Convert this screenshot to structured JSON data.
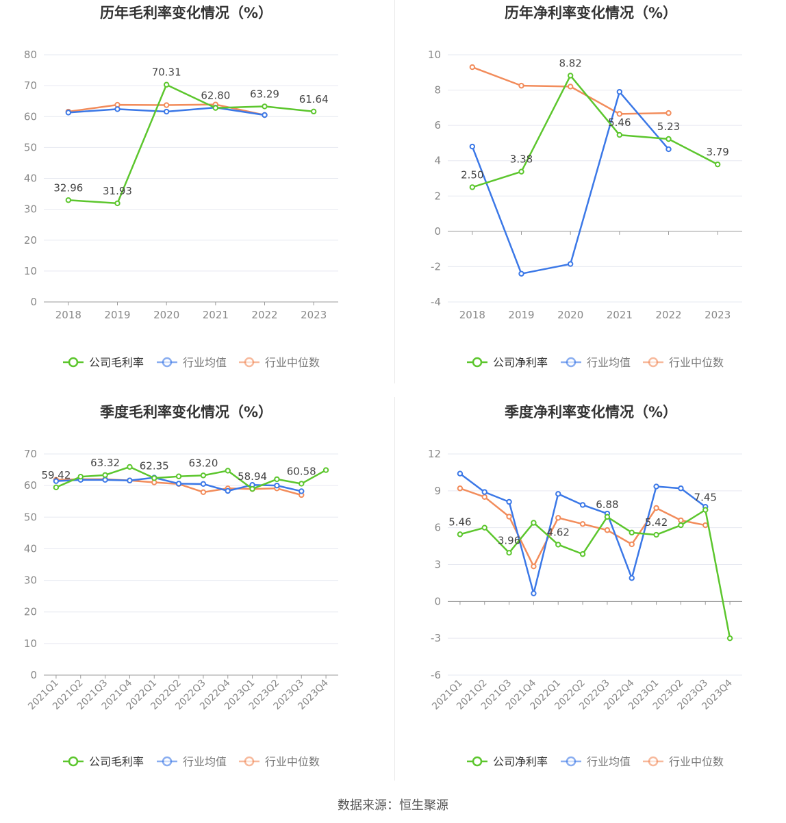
{
  "source_text": "数据来源：恒生聚源",
  "colors": {
    "company": "#5cc62d",
    "avg": "#3b78e7",
    "median": "#f28c5b",
    "grid": "#e6e8f0",
    "axis": "#888888",
    "title": "#333333"
  },
  "chart_data": [
    {
      "type": "line",
      "title": "历年毛利率变化情况（%）",
      "categories": [
        "2018",
        "2019",
        "2020",
        "2021",
        "2022",
        "2023"
      ],
      "ylim": [
        0,
        80
      ],
      "yticks": [
        "0",
        "10",
        "20",
        "30",
        "40",
        "50",
        "60",
        "70",
        "80"
      ],
      "grid": true,
      "legend_position": "bottom",
      "series": [
        {
          "name": "公司毛利率",
          "values": [
            32.96,
            31.93,
            70.31,
            62.8,
            63.29,
            61.64
          ],
          "labels": [
            "32.96",
            "31.93",
            "70.31",
            "62.80",
            "63.29",
            "61.64"
          ]
        },
        {
          "name": "行业均值",
          "values": [
            61.3,
            62.4,
            61.6,
            62.9,
            60.5,
            null
          ]
        },
        {
          "name": "行业中位数",
          "values": [
            61.6,
            63.8,
            63.7,
            63.9,
            60.5,
            null
          ]
        }
      ]
    },
    {
      "type": "line",
      "title": "历年净利率变化情况（%）",
      "categories": [
        "2018",
        "2019",
        "2020",
        "2021",
        "2022",
        "2023"
      ],
      "ylim": [
        -4,
        10
      ],
      "yticks": [
        "-4",
        "-2",
        "0",
        "2",
        "4",
        "6",
        "8",
        "10"
      ],
      "grid": true,
      "legend_position": "bottom",
      "series": [
        {
          "name": "公司净利率",
          "values": [
            2.5,
            3.38,
            8.82,
            5.46,
            5.23,
            3.79
          ],
          "labels": [
            "2.50",
            "3.38",
            "8.82",
            "5.46",
            "5.23",
            "3.79"
          ]
        },
        {
          "name": "行业均值",
          "values": [
            4.8,
            -2.4,
            -1.85,
            7.9,
            4.65,
            null
          ]
        },
        {
          "name": "行业中位数",
          "values": [
            9.3,
            8.25,
            8.2,
            6.65,
            6.7,
            null
          ]
        }
      ]
    },
    {
      "type": "line",
      "title": "季度毛利率变化情况（%）",
      "categories": [
        "2021Q1",
        "2021Q2",
        "2021Q3",
        "2021Q4",
        "2022Q1",
        "2022Q2",
        "2022Q3",
        "2022Q4",
        "2023Q1",
        "2023Q2",
        "2023Q3",
        "2023Q4"
      ],
      "ylim": [
        0,
        70
      ],
      "yticks": [
        "0",
        "10",
        "20",
        "30",
        "40",
        "50",
        "60",
        "70"
      ],
      "grid": true,
      "legend_position": "bottom",
      "series": [
        {
          "name": "公司毛利率",
          "values": [
            59.42,
            62.8,
            63.32,
            65.9,
            62.35,
            62.9,
            63.2,
            64.7,
            58.94,
            62.0,
            60.58,
            64.9
          ],
          "labels": [
            "59.42",
            "",
            "63.32",
            "",
            "62.35",
            "",
            "63.20",
            "",
            "58.94",
            "",
            "60.58",
            ""
          ]
        },
        {
          "name": "行业均值",
          "values": [
            61.4,
            61.8,
            61.8,
            61.6,
            62.5,
            60.6,
            60.5,
            58.3,
            60.2,
            60.0,
            58.2,
            null
          ]
        },
        {
          "name": "行业中位数",
          "values": [
            61.8,
            62.0,
            62.0,
            61.6,
            61.0,
            60.5,
            57.9,
            59.1,
            58.9,
            59.1,
            57.0,
            null
          ]
        }
      ]
    },
    {
      "type": "line",
      "title": "季度净利率变化情况（%）",
      "categories": [
        "2021Q1",
        "2021Q2",
        "2021Q3",
        "2021Q4",
        "2022Q1",
        "2022Q2",
        "2022Q3",
        "2022Q4",
        "2023Q1",
        "2023Q2",
        "2023Q3",
        "2023Q4"
      ],
      "ylim": [
        -6,
        12
      ],
      "yticks": [
        "-6",
        "-3",
        "0",
        "3",
        "6",
        "9",
        "12"
      ],
      "grid": true,
      "legend_position": "bottom",
      "series": [
        {
          "name": "公司净利率",
          "values": [
            5.46,
            6.0,
            3.96,
            6.4,
            4.62,
            3.85,
            6.88,
            5.6,
            5.42,
            6.2,
            7.45,
            -3.0
          ],
          "labels": [
            "5.46",
            "",
            "3.96",
            "",
            "4.62",
            "",
            "6.88",
            "",
            "5.42",
            "",
            "7.45",
            ""
          ]
        },
        {
          "name": "行业均值",
          "values": [
            10.4,
            8.9,
            8.1,
            0.65,
            8.75,
            7.85,
            7.15,
            1.9,
            9.35,
            9.2,
            7.7,
            null
          ]
        },
        {
          "name": "行业中位数",
          "values": [
            9.2,
            8.5,
            6.9,
            2.85,
            6.8,
            6.3,
            5.8,
            4.65,
            7.6,
            6.6,
            6.2,
            null
          ]
        }
      ]
    }
  ]
}
